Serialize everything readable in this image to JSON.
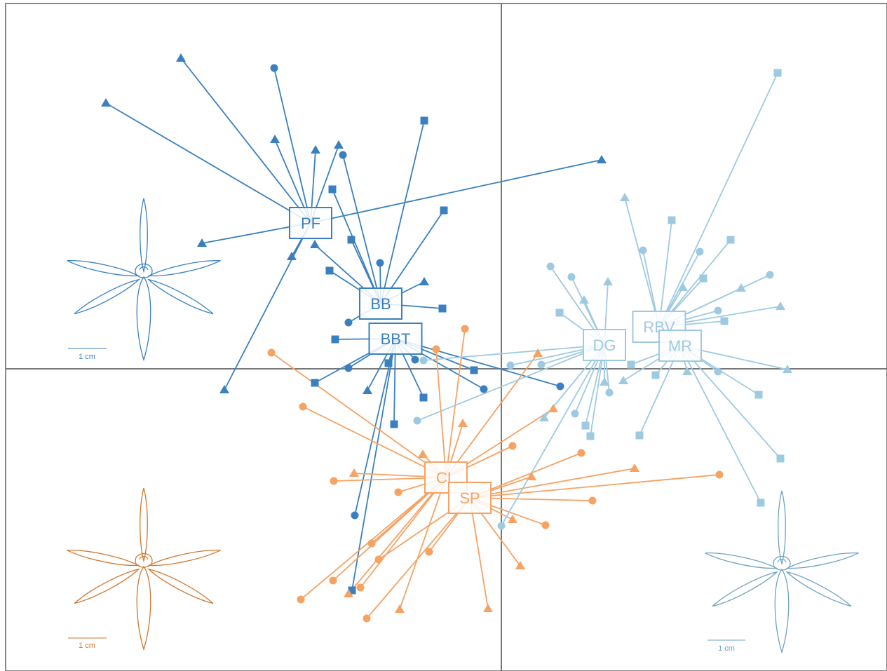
{
  "chart_data": {
    "type": "scatter",
    "xlim": [
      -7.07,
      5.5
    ],
    "ylim": [
      -4.31,
      5.21
    ],
    "scale_labels": [
      "1 cm",
      "1 cm",
      "1 cm"
    ],
    "groups": [
      {
        "name": "PF",
        "color": "#3a80c0",
        "center": [
          -2.72,
          2.08
        ],
        "points": {
          "x": [
            -4.57,
            -5.64,
            -3.23,
            -2.65,
            1.43,
            -4.27,
            -2.99,
            -3.95,
            -2.32,
            -3.24
          ],
          "y": [
            4.43,
            3.79,
            3.27,
            3.12,
            2.98,
            1.79,
            1.6,
            -0.3,
            3.19,
            4.29
          ],
          "shape": [
            "triangle",
            "triangle",
            "triangle",
            "triangle",
            "triangle",
            "triangle",
            "triangle",
            "triangle",
            "triangle",
            "circle"
          ]
        }
      },
      {
        "name": "BB",
        "color": "#3a80c0",
        "center": [
          -1.72,
          0.93
        ],
        "points": {
          "x": [
            -2.26,
            -1.1,
            -2.41,
            -0.82,
            -2.14,
            -1.73,
            -1.1,
            -0.84,
            -2.18,
            -2.66,
            -2.45
          ],
          "y": [
            3.05,
            3.54,
            2.56,
            2.26,
            1.84,
            1.51,
            1.24,
            0.86,
            0.66,
            1.77,
            1.4
          ],
          "shape": [
            "circle",
            "square",
            "square",
            "square",
            "square",
            "circle",
            "triangle",
            "square",
            "circle",
            "triangle",
            "square"
          ]
        }
      },
      {
        "name": "BBT",
        "color": "#3a80c0",
        "center": [
          -1.51,
          0.43
        ],
        "points": {
          "x": [
            -2.37,
            0.84,
            -2.66,
            -2.18,
            -1.91,
            -1.53,
            -1.11,
            -2.09,
            -2.13,
            -1.23,
            -0.39,
            -0.25,
            -1.61
          ],
          "y": [
            0.42,
            -0.25,
            -0.2,
            0.01,
            -0.31,
            -0.79,
            -0.41,
            -2.09,
            -3.16,
            0.13,
            -0.02,
            -0.29,
            0.08
          ],
          "shape": [
            "square",
            "circle",
            "square",
            "circle",
            "triangle",
            "square",
            "square",
            "circle",
            "square",
            "circle",
            "square",
            "circle",
            "square"
          ]
        }
      },
      {
        "name": "CL",
        "color": "#f5a263",
        "center": [
          -0.79,
          -1.55
        ],
        "points": {
          "x": [
            -3.28,
            -2.83,
            -2.39,
            -1.47,
            -1.85,
            -2.4,
            -2.86,
            -2.01,
            -0.93,
            -0.52,
            0.16,
            -1.12,
            -2.1,
            -2.18,
            -1.45,
            -0.55,
            0.52,
            0.74
          ],
          "y": [
            0.23,
            -0.54,
            -1.6,
            -1.76,
            -2.49,
            -3.02,
            -3.29,
            -3.12,
            0.28,
            0.57,
            -1.1,
            -1.22,
            -1.49,
            -3.21,
            -3.43,
            -0.78,
            0.22,
            -0.57
          ],
          "shape": [
            "circle",
            "circle",
            "circle",
            "circle",
            "circle",
            "circle",
            "circle",
            "circle",
            "circle",
            "circle",
            "circle",
            "triangle",
            "triangle",
            "triangle",
            "triangle",
            "triangle",
            "triangle",
            "triangle"
          ]
        }
      },
      {
        "name": "SP",
        "color": "#f5a263",
        "center": [
          -0.45,
          -1.84
        ],
        "points": {
          "x": [
            3.11,
            1.3,
            1.14,
            0.63,
            -1.75,
            -1.92,
            -1.03,
            1.9,
            0.43,
            0.16,
            0.27,
            -0.19
          ],
          "y": [
            -1.51,
            -1.88,
            -1.2,
            -2.23,
            -2.72,
            -3.56,
            -2.61,
            -1.42,
            -1.54,
            -2.15,
            -2.81,
            -3.42
          ],
          "shape": [
            "circle",
            "circle",
            "circle",
            "circle",
            "circle",
            "circle",
            "circle",
            "triangle",
            "triangle",
            "triangle",
            "triangle",
            "triangle"
          ]
        }
      },
      {
        "name": "DG",
        "color": "#9ecae1",
        "center": [
          1.47,
          0.34
        ],
        "points": {
          "x": [
            0.7,
            1.0,
            0.13,
            0.57,
            -1.11,
            -1.2,
            1.05,
            1.54,
            0.0,
            1.18,
            1.52,
            0.61,
            1.47,
            0.83,
            1.2,
            1.27
          ],
          "y": [
            1.46,
            1.31,
            0.05,
            0.06,
            0.12,
            -0.74,
            -0.64,
            -0.34,
            -2.24,
            0.98,
            1.24,
            -0.7,
            -0.19,
            0.8,
            -0.81,
            -0.96
          ],
          "shape": [
            "circle",
            "circle",
            "circle",
            "circle",
            "circle",
            "circle",
            "circle",
            "circle",
            "circle",
            "triangle",
            "triangle",
            "triangle",
            "triangle",
            "square",
            "square",
            "square"
          ]
        }
      },
      {
        "name": "RBV",
        "color": "#9ecae1",
        "center": [
          2.25,
          0.6
        ],
        "points": {
          "x": [
            1.76,
            2.59,
            3.42,
            3.98,
            2.02,
            2.83,
            3.83,
            3.09,
            2.43,
            3.27,
            2.88,
            3.94,
            3.18
          ],
          "y": [
            2.44,
            1.16,
            1.15,
            0.89,
            1.69,
            1.67,
            1.34,
            0.83,
            2.12,
            1.84,
            1.29,
            4.22,
            0.68
          ],
          "shape": [
            "triangle",
            "triangle",
            "triangle",
            "triangle",
            "circle",
            "circle",
            "circle",
            "circle",
            "square",
            "square",
            "square",
            "square",
            "square"
          ]
        }
      },
      {
        "name": "MR",
        "color": "#9ecae1",
        "center": [
          2.55,
          0.33
        ],
        "points": {
          "x": [
            4.08,
            2.65,
            1.74,
            3.09,
            3.67,
            3.98,
            3.7,
            1.97,
            2.2,
            1.85
          ],
          "y": [
            -0.01,
            -0.04,
            -0.17,
            -0.04,
            -0.37,
            -1.28,
            -1.91,
            -0.95,
            -0.09,
            0.06
          ],
          "shape": [
            "triangle",
            "triangle",
            "triangle",
            "circle",
            "square",
            "square",
            "square",
            "square",
            "square",
            "square"
          ]
        }
      }
    ]
  }
}
